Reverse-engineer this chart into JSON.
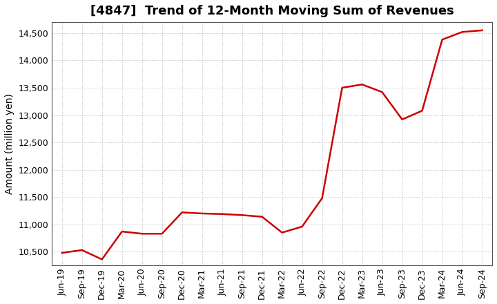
{
  "title": "[4847]  Trend of 12-Month Moving Sum of Revenues",
  "ylabel": "Amount (million yen)",
  "line_color": "#CC0000",
  "background_color": "#FFFFFF",
  "plot_background_color": "#FFFFFF",
  "grid_color": "#AAAAAA",
  "x_labels": [
    "Jun-19",
    "Sep-19",
    "Dec-19",
    "Mar-20",
    "Jun-20",
    "Sep-20",
    "Dec-20",
    "Mar-21",
    "Jun-21",
    "Sep-21",
    "Dec-21",
    "Mar-22",
    "Jun-22",
    "Sep-22",
    "Dec-22",
    "Mar-23",
    "Jun-23",
    "Sep-23",
    "Dec-23",
    "Mar-24",
    "Jun-24",
    "Sep-24"
  ],
  "values": [
    10480,
    10530,
    10360,
    10870,
    10830,
    10830,
    11220,
    11200,
    11190,
    11170,
    11140,
    10850,
    10960,
    11480,
    13500,
    13560,
    13420,
    12920,
    13080,
    14380,
    14520,
    14550
  ],
  "ylim_min": 10250,
  "ylim_max": 14700,
  "yticks": [
    10500,
    11000,
    11500,
    12000,
    12500,
    13000,
    13500,
    14000,
    14500
  ],
  "linewidth": 1.8,
  "title_fontsize": 13,
  "axis_label_fontsize": 10,
  "tick_fontsize": 9
}
